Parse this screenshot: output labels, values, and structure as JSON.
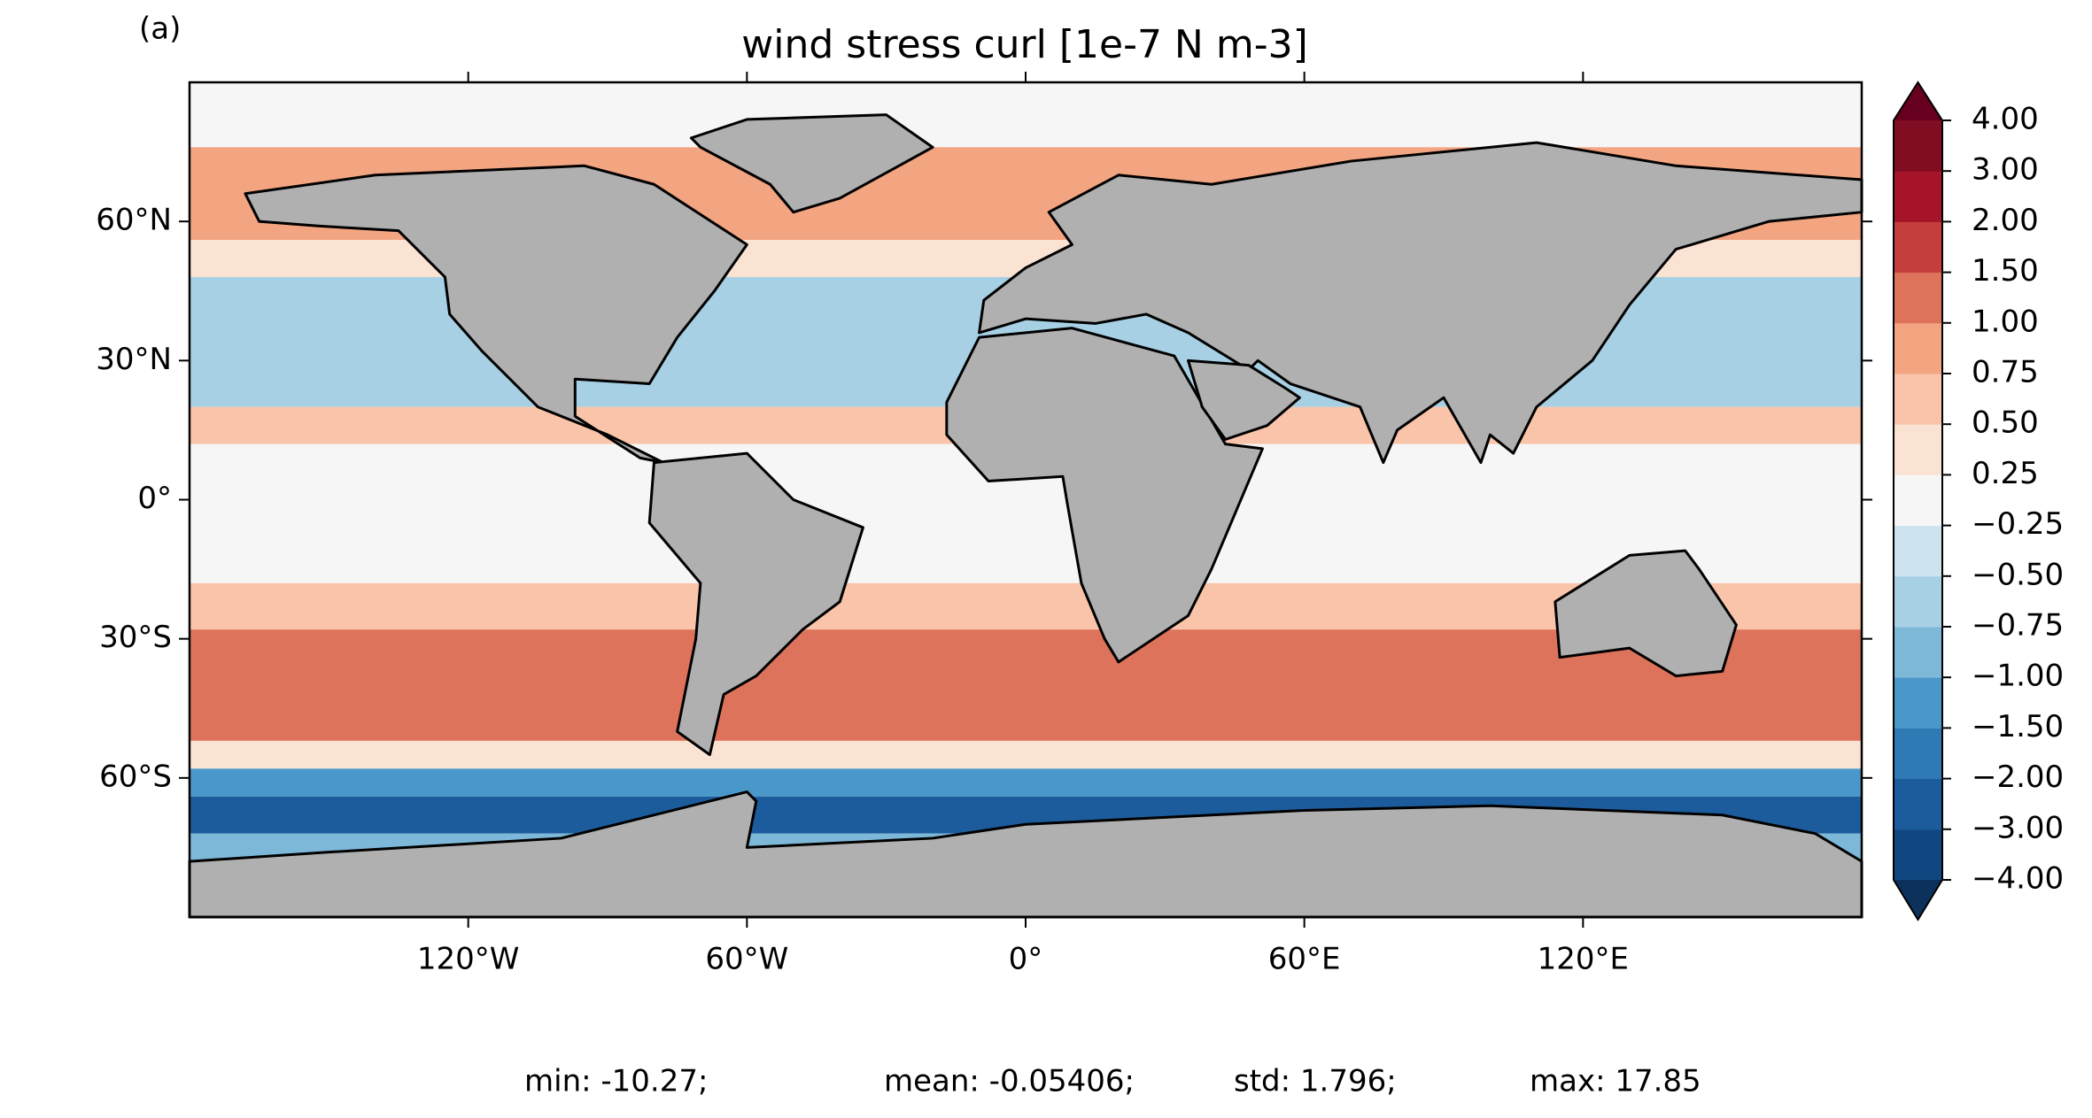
{
  "chart_data": {
    "type": "map",
    "panel_label": "(a)",
    "title": "wind stress curl [1e-7 N m-3]",
    "xlim": [
      -180,
      180
    ],
    "ylim": [
      -90,
      90
    ],
    "xticks": [
      {
        "value": -120,
        "label": "120°W"
      },
      {
        "value": -60,
        "label": "60°W"
      },
      {
        "value": 0,
        "label": "0°"
      },
      {
        "value": 60,
        "label": "60°E"
      },
      {
        "value": 120,
        "label": "120°E"
      }
    ],
    "yticks": [
      {
        "value": 60,
        "label": "60°N"
      },
      {
        "value": 30,
        "label": "30°N"
      },
      {
        "value": 0,
        "label": "0°"
      },
      {
        "value": -30,
        "label": "30°S"
      },
      {
        "value": -60,
        "label": "60°S"
      }
    ],
    "colorbar": {
      "levels": [
        {
          "value": -4,
          "label": "−4.00"
        },
        {
          "value": -3,
          "label": "−3.00"
        },
        {
          "value": -2,
          "label": "−2.00"
        },
        {
          "value": -1.5,
          "label": "−1.50"
        },
        {
          "value": -1,
          "label": "−1.00"
        },
        {
          "value": -0.75,
          "label": "−0.75"
        },
        {
          "value": -0.5,
          "label": "−0.50"
        },
        {
          "value": -0.25,
          "label": "−0.25"
        },
        {
          "value": 0.25,
          "label": "0.25"
        },
        {
          "value": 0.5,
          "label": "0.50"
        },
        {
          "value": 0.75,
          "label": "0.75"
        },
        {
          "value": 1,
          "label": "1.00"
        },
        {
          "value": 1.5,
          "label": "1.50"
        },
        {
          "value": 2,
          "label": "2.00"
        },
        {
          "value": 3,
          "label": "3.00"
        },
        {
          "value": 4,
          "label": "4.00"
        }
      ],
      "colors": [
        "#114781",
        "#1c5c9c",
        "#2f79b5",
        "#4a98c9",
        "#7db8d8",
        "#a7d0e4",
        "#cde3ee",
        "#f7f6f6",
        "#fbe3d4",
        "#f9c4a9",
        "#f3a481",
        "#de735c",
        "#c53e3d",
        "#a51429",
        "#800d22"
      ],
      "under_color": "#0c325c",
      "over_color": "#67001f"
    },
    "stats": [
      "min: -10.27;",
      "mean: -0.05406;",
      "std: 1.796;",
      "max: 17.85"
    ]
  }
}
